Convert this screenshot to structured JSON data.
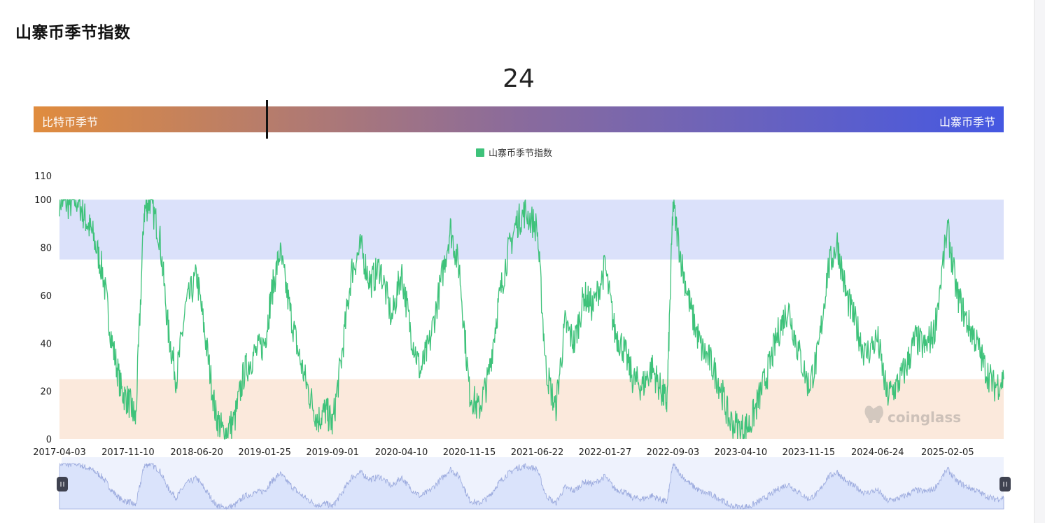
{
  "page": {
    "title": "山寨币季节指数"
  },
  "gauge": {
    "value": "24",
    "left_label": "比特币季节",
    "right_label": "山寨币季节",
    "gradient": [
      "#e08c3e",
      "#8a6b9c",
      "#4558e2"
    ]
  },
  "colors": {
    "line": "#3ec27a",
    "altseason_band": "#dbe1fa",
    "btcseason_band": "#fbe9dc",
    "navigator_fill": "#dae3fb",
    "navigator_bg": "#eef2fd",
    "navigator_line": "#9aa9dd"
  },
  "watermark": "coinglass",
  "chart_data": {
    "type": "line",
    "title": "",
    "xlabel": "",
    "ylabel": "",
    "ylim": [
      0,
      110
    ],
    "yticks": [
      "0",
      "20",
      "40",
      "60",
      "80",
      "100",
      "110"
    ],
    "xticks": [
      "2017-04-03",
      "2017-11-10",
      "2018-06-20",
      "2019-01-25",
      "2019-09-01",
      "2020-04-10",
      "2020-11-15",
      "2021-06-22",
      "2022-01-27",
      "2022-09-03",
      "2023-04-10",
      "2023-11-15",
      "2024-06-24",
      "2025-02-05"
    ],
    "legend": {
      "position": "top-center",
      "entries": [
        "山寨币季节指数"
      ]
    },
    "bands": [
      {
        "from": 75,
        "to": 100
      },
      {
        "from": 0,
        "to": 25
      }
    ],
    "series": [
      {
        "name": "山寨币季节指数",
        "x": [
          "2017-04-03",
          "2017-05-03",
          "2017-06-01",
          "2017-06-25",
          "2017-07-20",
          "2017-08-20",
          "2017-09-20",
          "2017-10-20",
          "2017-11-15",
          "2017-12-05",
          "2018-01-01",
          "2018-01-20",
          "2018-02-20",
          "2018-03-20",
          "2018-04-15",
          "2018-05-15",
          "2018-06-20",
          "2018-07-20",
          "2018-08-20",
          "2018-09-15",
          "2018-10-20",
          "2018-11-20",
          "2018-12-20",
          "2019-01-25",
          "2019-02-15",
          "2019-03-15",
          "2019-04-15",
          "2019-05-15",
          "2019-06-15",
          "2019-07-15",
          "2019-08-10",
          "2019-09-01",
          "2019-10-01",
          "2019-11-01",
          "2019-12-01",
          "2020-01-01",
          "2020-02-01",
          "2020-03-10",
          "2020-04-10",
          "2020-05-10",
          "2020-06-10",
          "2020-07-10",
          "2020-08-15",
          "2020-09-15",
          "2020-10-15",
          "2020-11-15",
          "2020-12-15",
          "2021-01-15",
          "2021-02-15",
          "2021-03-15",
          "2021-04-15",
          "2021-05-15",
          "2021-06-22",
          "2021-07-20",
          "2021-08-20",
          "2021-09-20",
          "2021-10-20",
          "2021-11-20",
          "2021-12-20",
          "2022-01-27",
          "2022-02-27",
          "2022-03-27",
          "2022-04-27",
          "2022-05-27",
          "2022-06-27",
          "2022-07-27",
          "2022-08-15",
          "2022-09-03",
          "2022-10-03",
          "2022-11-03",
          "2022-12-03",
          "2023-01-03",
          "2023-02-03",
          "2023-03-03",
          "2023-04-10",
          "2023-05-10",
          "2023-06-10",
          "2023-07-10",
          "2023-08-10",
          "2023-09-10",
          "2023-10-10",
          "2023-11-15",
          "2023-12-15",
          "2024-01-15",
          "2024-02-15",
          "2024-03-15",
          "2024-04-15",
          "2024-05-15",
          "2024-06-24",
          "2024-07-24",
          "2024-08-24",
          "2024-09-24",
          "2024-10-24",
          "2024-11-24",
          "2024-12-24",
          "2025-02-05",
          "2025-03-05",
          "2025-04-05",
          "2025-05-05",
          "2025-06-05",
          "2025-07-05",
          "2025-08-05"
        ],
        "values": [
          100,
          98,
          100,
          92,
          85,
          70,
          40,
          20,
          15,
          8,
          95,
          100,
          85,
          45,
          25,
          55,
          68,
          40,
          10,
          2,
          8,
          28,
          35,
          40,
          60,
          78,
          55,
          35,
          20,
          8,
          12,
          6,
          35,
          70,
          80,
          65,
          72,
          50,
          70,
          45,
          28,
          40,
          65,
          88,
          70,
          20,
          12,
          25,
          55,
          75,
          90,
          95,
          88,
          30,
          12,
          48,
          40,
          60,
          55,
          72,
          45,
          38,
          25,
          22,
          30,
          20,
          15,
          98,
          72,
          52,
          38,
          32,
          22,
          8,
          4,
          6,
          18,
          30,
          45,
          55,
          38,
          22,
          35,
          70,
          82,
          60,
          48,
          35,
          42,
          18,
          22,
          30,
          42,
          38,
          45,
          88,
          62,
          50,
          42,
          30,
          22,
          25
        ]
      }
    ]
  }
}
